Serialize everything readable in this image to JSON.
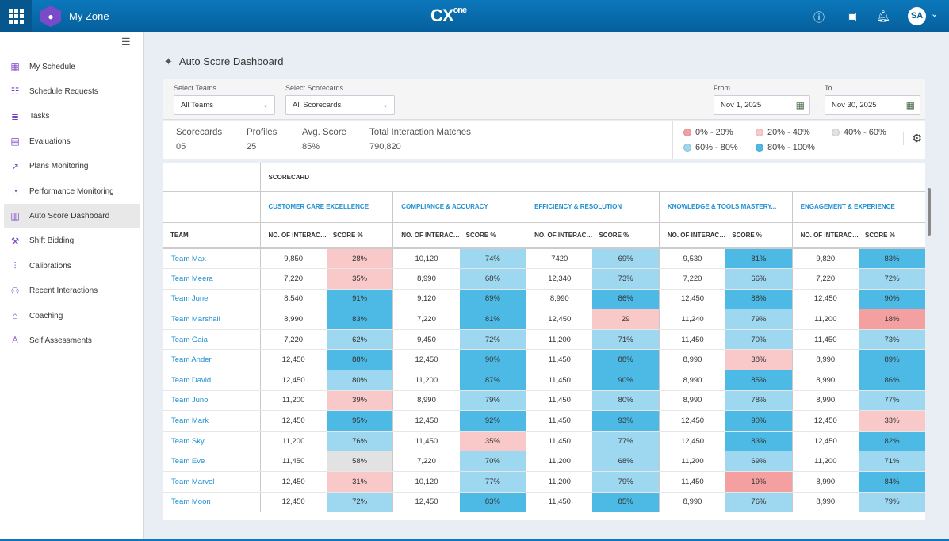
{
  "header": {
    "app_name": "My Zone",
    "brand": "CX",
    "brand_sup": "one",
    "avatar_initials": "SA",
    "icons": [
      "apps-grid-icon",
      "help-icon",
      "display-icon",
      "bell-icon",
      "chevron-down-icon"
    ]
  },
  "sidebar": {
    "items": [
      {
        "label": "My Schedule",
        "icon": "calendar-user-icon"
      },
      {
        "label": "Schedule Requests",
        "icon": "calendar-list-icon"
      },
      {
        "label": "Tasks",
        "icon": "tasks-icon"
      },
      {
        "label": "Evaluations",
        "icon": "evaluation-icon"
      },
      {
        "label": "Plans Monitoring",
        "icon": "chart-line-icon"
      },
      {
        "label": "Performance Monitoring",
        "icon": "gauge-icon"
      },
      {
        "label": "Auto Score Dashboard",
        "icon": "dashboard-icon",
        "active": true
      },
      {
        "label": "Shift Bidding",
        "icon": "gavel-icon"
      },
      {
        "label": "Calibrations",
        "icon": "sliders-icon"
      },
      {
        "label": "Recent Interactions",
        "icon": "interactions-icon"
      },
      {
        "label": "Coaching",
        "icon": "coaching-icon"
      },
      {
        "label": "Self Assessments",
        "icon": "user-icon"
      }
    ]
  },
  "page": {
    "title": "Auto Score Dashboard"
  },
  "filters": {
    "teams_label": "Select Teams",
    "teams_value": "All Teams",
    "scorecards_label": "Select Scorecards",
    "scorecards_value": "All Scorecards",
    "from_label": "From",
    "from_value": "Nov 1, 2025",
    "to_label": "To",
    "to_value": "Nov 30, 2025",
    "separator": "-"
  },
  "stats": [
    {
      "label": "Scorecards",
      "value": "05"
    },
    {
      "label": "Profiles",
      "value": "25"
    },
    {
      "label": "Avg. Score",
      "value": "85%"
    },
    {
      "label": "Total Interaction Matches",
      "value": "790,820"
    }
  ],
  "legend": [
    {
      "label": "0% - 20%",
      "color": "#f4a0a0"
    },
    {
      "label": "20% - 40%",
      "color": "#f9c8c8"
    },
    {
      "label": "40% - 60%",
      "color": "#e2e2e2"
    },
    {
      "label": "60% - 80%",
      "color": "#9dd7f0"
    },
    {
      "label": "80% - 100%",
      "color": "#4db9e5"
    }
  ],
  "table": {
    "scorecard_header": "SCORECARD",
    "team_header": "TEAM",
    "interactions_header": "NO. OF INTERACTI...",
    "score_header": "SCORE %",
    "scorecards": [
      "CUSTOMER CARE EXCELLENCE",
      "COMPLIANCE & ACCURACY",
      "EFFICIENCY & RESOLUTION",
      "KNOWLEDGE & TOOLS MASTERY...",
      "ENGAGEMENT & EXPERIENCE"
    ],
    "rows": [
      {
        "team": "Team Max",
        "cells": [
          [
            "9,850",
            "28%"
          ],
          [
            "10,120",
            "74%"
          ],
          [
            "7420",
            "69%"
          ],
          [
            "9,530",
            "81%"
          ],
          [
            "9,820",
            "83%"
          ]
        ]
      },
      {
        "team": "Team Meera",
        "cells": [
          [
            "7,220",
            "35%"
          ],
          [
            "8,990",
            "68%"
          ],
          [
            "12,340",
            "73%"
          ],
          [
            "7,220",
            "66%"
          ],
          [
            "7,220",
            "72%"
          ]
        ]
      },
      {
        "team": "Team June",
        "cells": [
          [
            "8,540",
            "91%"
          ],
          [
            "9,120",
            "89%"
          ],
          [
            "8,990",
            "86%"
          ],
          [
            "12,450",
            "88%"
          ],
          [
            "12,450",
            "90%"
          ]
        ]
      },
      {
        "team": "Team Marshall",
        "cells": [
          [
            "8,990",
            "83%"
          ],
          [
            "7,220",
            "81%"
          ],
          [
            "12,450",
            "29"
          ],
          [
            "11,240",
            "79%"
          ],
          [
            "11,200",
            "18%"
          ]
        ]
      },
      {
        "team": "Team Gaia",
        "cells": [
          [
            "7,220",
            "62%"
          ],
          [
            "9,450",
            "72%"
          ],
          [
            "11,200",
            "71%"
          ],
          [
            "11,450",
            "70%"
          ],
          [
            "11,450",
            "73%"
          ]
        ]
      },
      {
        "team": "Team Ander",
        "cells": [
          [
            "12,450",
            "88%"
          ],
          [
            "12,450",
            "90%"
          ],
          [
            "11,450",
            "88%"
          ],
          [
            "8,990",
            "38%"
          ],
          [
            "8,990",
            "89%"
          ]
        ]
      },
      {
        "team": "Team David",
        "cells": [
          [
            "12,450",
            "80%"
          ],
          [
            "11,200",
            "87%"
          ],
          [
            "11,450",
            "90%"
          ],
          [
            "8,990",
            "85%"
          ],
          [
            "8,990",
            "86%"
          ]
        ]
      },
      {
        "team": "Team Juno",
        "cells": [
          [
            "11,200",
            "39%"
          ],
          [
            "8,990",
            "79%"
          ],
          [
            "11,450",
            "80%"
          ],
          [
            "8,990",
            "78%"
          ],
          [
            "8,990",
            "77%"
          ]
        ]
      },
      {
        "team": "Team Mark",
        "cells": [
          [
            "12,450",
            "95%"
          ],
          [
            "12,450",
            "92%"
          ],
          [
            "11,450",
            "93%"
          ],
          [
            "12,450",
            "90%"
          ],
          [
            "12,450",
            "33%"
          ]
        ]
      },
      {
        "team": "Team Sky",
        "cells": [
          [
            "11,200",
            "76%"
          ],
          [
            "11,450",
            "35%"
          ],
          [
            "11,450",
            "77%"
          ],
          [
            "12,450",
            "83%"
          ],
          [
            "12,450",
            "82%"
          ]
        ]
      },
      {
        "team": "Team Eve",
        "cells": [
          [
            "11,450",
            "58%"
          ],
          [
            "7,220",
            "70%"
          ],
          [
            "11,200",
            "68%"
          ],
          [
            "11,200",
            "69%"
          ],
          [
            "11,200",
            "71%"
          ]
        ]
      },
      {
        "team": "Team Marvel",
        "cells": [
          [
            "12,450",
            "31%"
          ],
          [
            "10,120",
            "77%"
          ],
          [
            "11,200",
            "79%"
          ],
          [
            "11,450",
            "19%"
          ],
          [
            "8,990",
            "84%"
          ]
        ]
      },
      {
        "team": "Team Moon",
        "cells": [
          [
            "12,450",
            "72%"
          ],
          [
            "12,450",
            "83%"
          ],
          [
            "11,450",
            "85%"
          ],
          [
            "8,990",
            "76%"
          ],
          [
            "8,990",
            "79%"
          ]
        ]
      }
    ]
  }
}
